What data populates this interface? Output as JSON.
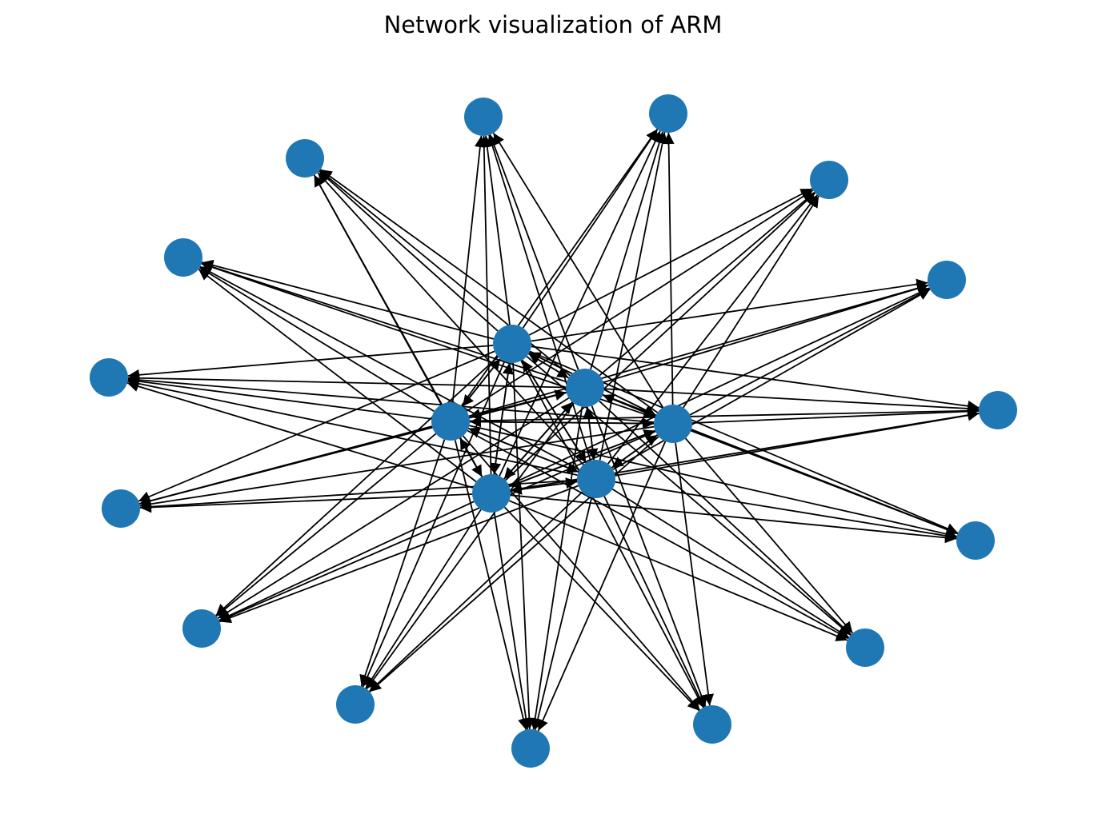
{
  "title": "Network visualization of ARM",
  "colors": {
    "node": "#1f77b4",
    "edge": "#000000",
    "background": "#ffffff"
  },
  "graph": {
    "directed": true,
    "node_count": 21,
    "hub_count": 6,
    "outer_count": 15,
    "edges_per_hub": "each of the 6 central nodes points to every other node"
  }
}
